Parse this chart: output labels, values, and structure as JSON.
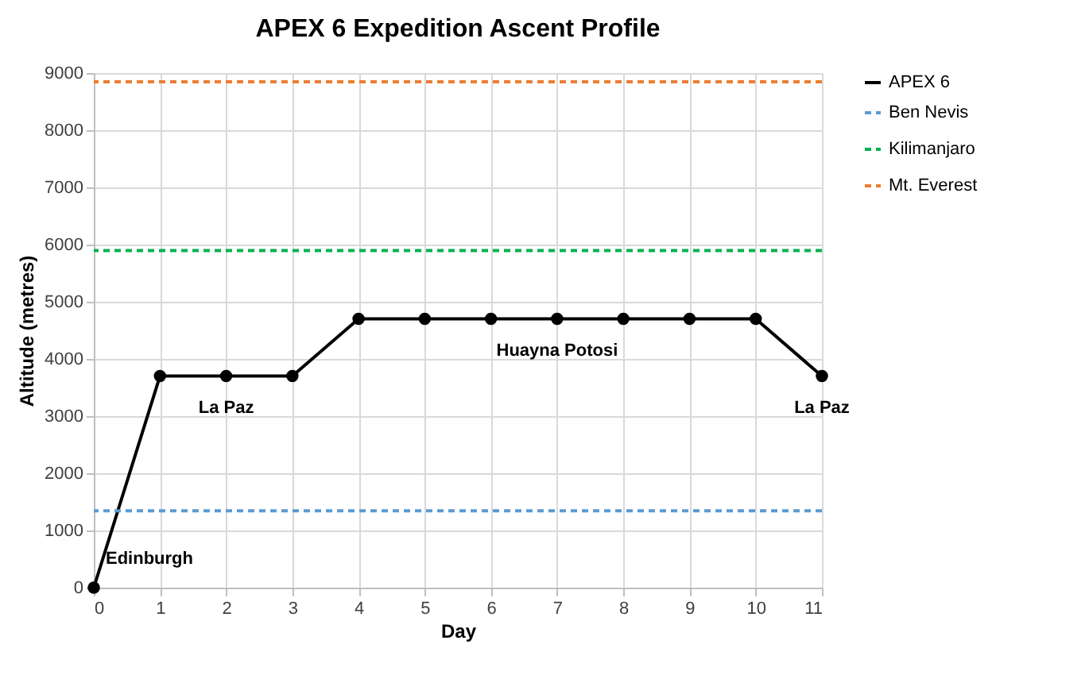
{
  "chart_data": {
    "type": "line",
    "title": "APEX 6 Expedition Ascent Profile",
    "xlabel": "Day",
    "ylabel": "Altitude (metres)",
    "x": [
      0,
      1,
      2,
      3,
      4,
      5,
      6,
      7,
      8,
      9,
      10,
      11
    ],
    "series": [
      {
        "name": "APEX 6",
        "color": "#000000",
        "values": [
          0,
          3700,
          3700,
          3700,
          4700,
          4700,
          4700,
          4700,
          4700,
          4700,
          4700,
          3700
        ]
      }
    ],
    "ref_lines": [
      {
        "axis": "y",
        "value": 1345,
        "label": "Ben Nevis",
        "color": "#5b9bd5",
        "line_style": "dashed"
      },
      {
        "axis": "y",
        "value": 5895,
        "label": "Kilimanjaro",
        "color": "#00b050",
        "line_style": "dashed"
      },
      {
        "axis": "y",
        "value": 8848,
        "label": "Mt. Everest",
        "color": "#ed7d31",
        "line_style": "dashed"
      }
    ],
    "annotations": [
      {
        "text": "Edinburgh",
        "x": 0,
        "y": 0
      },
      {
        "text": "La Paz",
        "x": 2,
        "y": 3700
      },
      {
        "text": "Huayna Potosi",
        "x": 7,
        "y": 4700
      },
      {
        "text": "La Paz",
        "x": 11,
        "y": 3700
      }
    ],
    "xlim": [
      0,
      11
    ],
    "xticks": [
      0,
      1,
      2,
      3,
      4,
      5,
      6,
      7,
      8,
      9,
      10,
      11
    ],
    "ylim": [
      0,
      9000
    ],
    "yticks": [
      0,
      1000,
      2000,
      3000,
      4000,
      5000,
      6000,
      7000,
      8000,
      9000
    ],
    "grid": true,
    "legend": "right",
    "marker": "circle",
    "line_style": "solid"
  }
}
